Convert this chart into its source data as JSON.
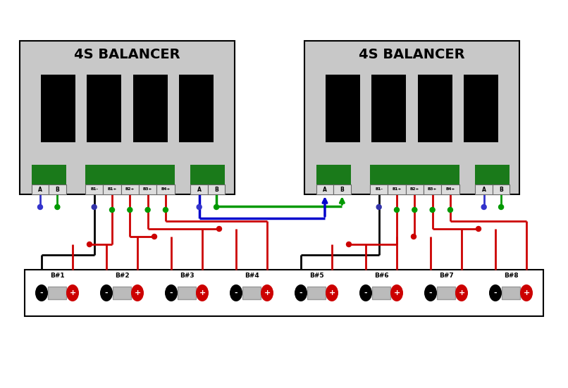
{
  "bg_color": "#ffffff",
  "balancer_bg": "#c8c8c8",
  "title": "4S BALANCER",
  "battery_labels": [
    "B#1",
    "B#2",
    "B#3",
    "B#4",
    "B#5",
    "B#6",
    "B#7",
    "B#8"
  ],
  "wire_black": "#000000",
  "wire_red": "#cc0000",
  "wire_green": "#009900",
  "wire_blue": "#0000cc",
  "dot_blue": "#3333cc",
  "dot_green": "#009900",
  "connector_green": "#1a7a1a",
  "lw_wire": 2.0,
  "lw_bridge": 2.5
}
